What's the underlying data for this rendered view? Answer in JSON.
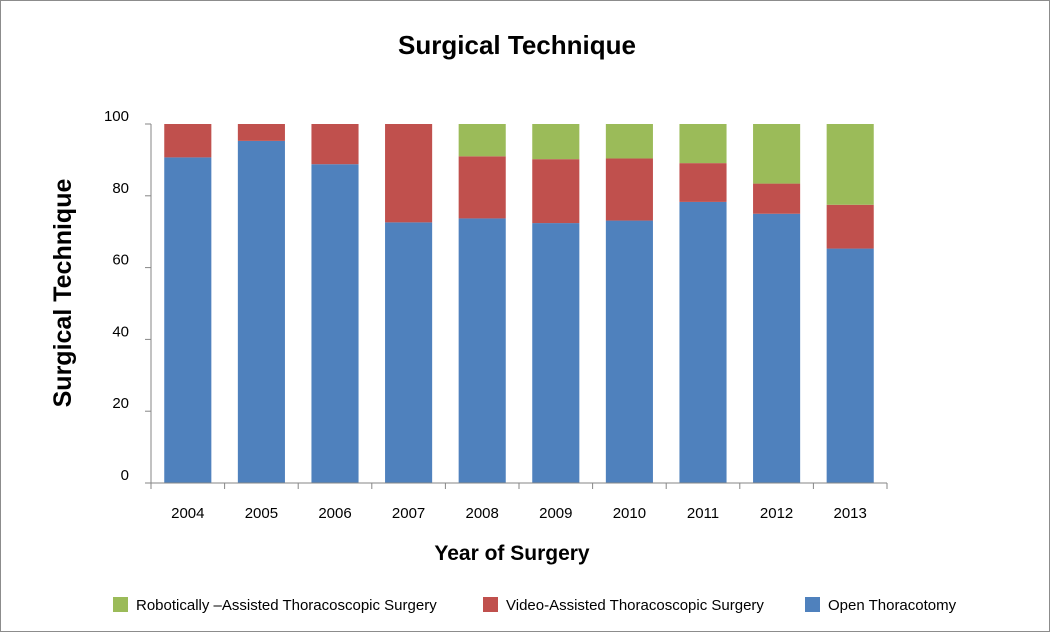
{
  "chart_data": {
    "type": "bar",
    "stacked": true,
    "title": "Surgical Technique",
    "xlabel": "Year of Surgery",
    "ylabel": "Surgical Technique",
    "ylim": [
      0,
      100
    ],
    "yticks": [
      0,
      20,
      40,
      60,
      80,
      100
    ],
    "categories": [
      "2004",
      "2005",
      "2006",
      "2007",
      "2008",
      "2009",
      "2010",
      "2011",
      "2012",
      "2013"
    ],
    "series": [
      {
        "name": "Open Thoracotomy",
        "key": "open",
        "color": "#4f81bd",
        "values": [
          90.7,
          95.3,
          88.8,
          72.6,
          73.7,
          72.4,
          73.1,
          78.3,
          75.0,
          65.3
        ]
      },
      {
        "name": "Video-Assisted Thoracoscopic Surgery",
        "key": "vats",
        "color": "#c0504d",
        "values": [
          9.3,
          4.7,
          11.2,
          27.4,
          17.3,
          17.8,
          17.3,
          10.8,
          8.4,
          12.2
        ]
      },
      {
        "name": "Robotically –Assisted Thoracoscopic Surgery",
        "key": "rats",
        "color": "#9bbb59",
        "values": [
          0,
          0,
          0,
          0,
          9.0,
          9.8,
          9.6,
          10.9,
          16.6,
          22.5
        ]
      }
    ],
    "legend": {
      "position": "bottom",
      "order": [
        "rats",
        "vats",
        "open"
      ]
    },
    "grid": false
  }
}
